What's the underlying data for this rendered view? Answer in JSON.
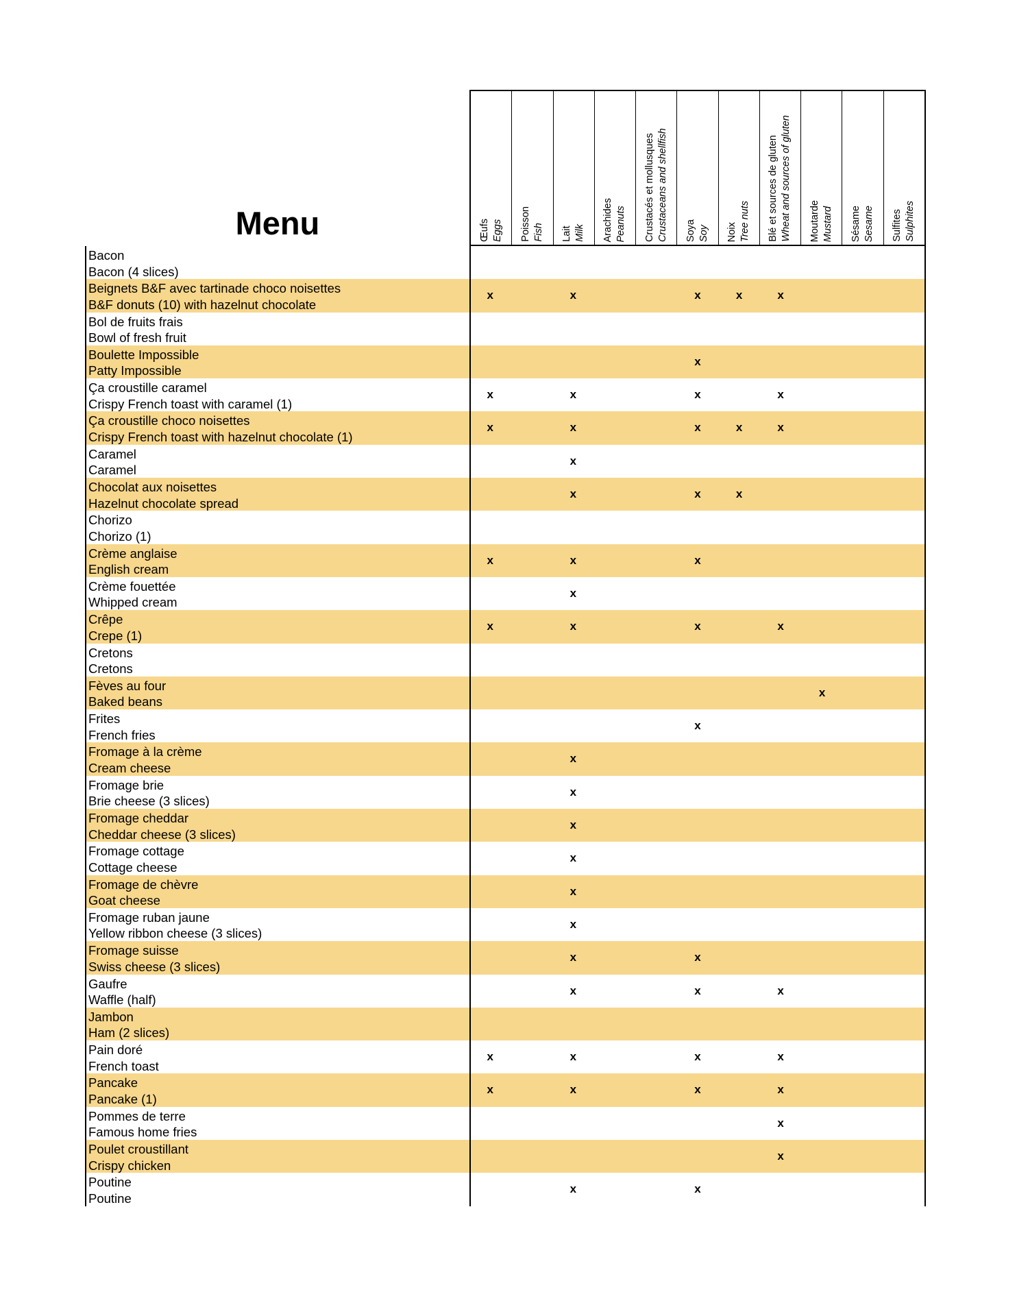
{
  "title": "Menu",
  "mark": "x",
  "highlight_color": "#F7D78C",
  "columns": [
    {
      "key": "eggs",
      "fr": "Œufs",
      "en": "Eggs"
    },
    {
      "key": "fish",
      "fr": "Poisson",
      "en": "Fish"
    },
    {
      "key": "milk",
      "fr": "Lait",
      "en": "Milk"
    },
    {
      "key": "peanuts",
      "fr": "Arachides",
      "en": "Peanuts"
    },
    {
      "key": "shellfish",
      "fr": "Crustacés et  mollusques",
      "en": "Crustaceans and shellfish"
    },
    {
      "key": "soy",
      "fr": "Soya",
      "en": "Soy"
    },
    {
      "key": "nuts",
      "fr": "Noix",
      "en": "Tree nuts"
    },
    {
      "key": "wheat",
      "fr": "Blé et sources de gluten",
      "en": "Wheat and sources of gluten"
    },
    {
      "key": "mustard",
      "fr": "Moutarde",
      "en": "Mustard"
    },
    {
      "key": "sesame",
      "fr": "Sésame",
      "en": "Sesame"
    },
    {
      "key": "sulphites",
      "fr": "Sulfites",
      "en": "Sulphites"
    }
  ],
  "items": [
    {
      "fr": "Bacon",
      "en": "Bacon (4 slices)",
      "allergens": []
    },
    {
      "fr": "Beignets B&F avec tartinade choco noisettes",
      "en": "B&F donuts (10) with hazelnut chocolate",
      "allergens": [
        "eggs",
        "milk",
        "soy",
        "nuts",
        "wheat"
      ]
    },
    {
      "fr": "Bol de fruits frais",
      "en": "Bowl of fresh fruit",
      "allergens": []
    },
    {
      "fr": "Boulette Impossible",
      "en": "Patty Impossible",
      "allergens": [
        "soy"
      ]
    },
    {
      "fr": "Ça croustille caramel",
      "en": "Crispy French toast with caramel (1)",
      "allergens": [
        "eggs",
        "milk",
        "soy",
        "wheat"
      ]
    },
    {
      "fr": "Ça croustille choco noisettes",
      "en": "Crispy French toast with hazelnut chocolate (1)",
      "allergens": [
        "eggs",
        "milk",
        "soy",
        "nuts",
        "wheat"
      ]
    },
    {
      "fr": "Caramel",
      "en": "Caramel",
      "allergens": [
        "milk"
      ]
    },
    {
      "fr": "Chocolat aux noisettes",
      "en": "Hazelnut chocolate spread",
      "allergens": [
        "milk",
        "soy",
        "nuts"
      ]
    },
    {
      "fr": "Chorizo",
      "en": "Chorizo (1)",
      "allergens": []
    },
    {
      "fr": "Crème anglaise",
      "en": "English cream",
      "allergens": [
        "eggs",
        "milk",
        "soy"
      ]
    },
    {
      "fr": "Crème fouettée",
      "en": "Whipped cream",
      "allergens": [
        "milk"
      ]
    },
    {
      "fr": "Crêpe",
      "en": "Crepe (1)",
      "allergens": [
        "eggs",
        "milk",
        "soy",
        "wheat"
      ]
    },
    {
      "fr": "Cretons",
      "en": "Cretons",
      "allergens": []
    },
    {
      "fr": "Fèves au four",
      "en": "Baked beans",
      "allergens": [
        "mustard"
      ]
    },
    {
      "fr": "Frites",
      "en": "French fries",
      "allergens": [
        "soy"
      ]
    },
    {
      "fr": "Fromage à la crème",
      "en": "Cream cheese",
      "allergens": [
        "milk"
      ]
    },
    {
      "fr": "Fromage brie",
      "en": "Brie cheese (3 slices)",
      "allergens": [
        "milk"
      ]
    },
    {
      "fr": "Fromage cheddar",
      "en": "Cheddar cheese (3 slices)",
      "allergens": [
        "milk"
      ]
    },
    {
      "fr": "Fromage cottage",
      "en": "Cottage cheese",
      "allergens": [
        "milk"
      ]
    },
    {
      "fr": "Fromage de chèvre",
      "en": "Goat cheese",
      "allergens": [
        "milk"
      ]
    },
    {
      "fr": "Fromage ruban jaune",
      "en": "Yellow ribbon cheese (3 slices)",
      "allergens": [
        "milk"
      ]
    },
    {
      "fr": "Fromage suisse",
      "en": "Swiss cheese (3 slices)",
      "allergens": [
        "milk",
        "soy"
      ]
    },
    {
      "fr": "Gaufre",
      "en": "Waffle (half)",
      "allergens": [
        "milk",
        "soy",
        "wheat"
      ]
    },
    {
      "fr": "Jambon",
      "en": "Ham (2 slices)",
      "allergens": []
    },
    {
      "fr": "Pain doré",
      "en": "French toast",
      "allergens": [
        "eggs",
        "milk",
        "soy",
        "wheat"
      ]
    },
    {
      "fr": "Pancake",
      "en": "Pancake (1)",
      "allergens": [
        "eggs",
        "milk",
        "soy",
        "wheat"
      ]
    },
    {
      "fr": "Pommes de terre",
      "en": "Famous home fries",
      "allergens": [
        "wheat"
      ]
    },
    {
      "fr": "Poulet croustillant",
      "en": "Crispy chicken",
      "allergens": [
        "wheat"
      ]
    },
    {
      "fr": "Poutine",
      "en": "Poutine",
      "allergens": [
        "milk",
        "soy"
      ]
    }
  ]
}
